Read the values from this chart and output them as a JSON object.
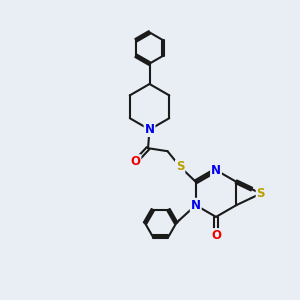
{
  "bg_color": "#e8eef4",
  "bond_color": "#1a1a1a",
  "N_color": "#0000ee",
  "O_color": "#ee0000",
  "S_color": "#b8a000",
  "font_size": 8.5,
  "line_width": 1.5,
  "figsize": [
    3.0,
    3.0
  ],
  "dpi": 100,
  "xlim": [
    0,
    10
  ],
  "ylim": [
    0,
    10
  ]
}
